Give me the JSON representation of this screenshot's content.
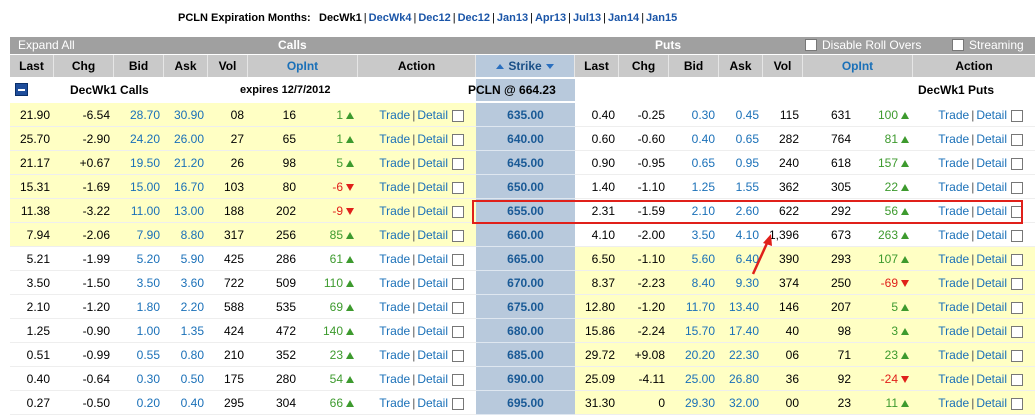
{
  "header": {
    "prefix": "PCLN Expiration Months:",
    "months": [
      "DecWk1",
      "DecWk4",
      "Dec12",
      "Dec12",
      "Jan13",
      "Apr13",
      "Jul13",
      "Jan14",
      "Jan15"
    ]
  },
  "toolbar": {
    "expand_all": "Expand All",
    "calls": "Calls",
    "puts": "Puts",
    "disable_roll_overs": "Disable Roll Overs",
    "streaming": "Streaming"
  },
  "columns": {
    "calls": [
      "Last",
      "Chg",
      "Bid",
      "Ask",
      "Vol",
      "OpInt",
      "Action"
    ],
    "strike": "Strike",
    "puts": [
      "Last",
      "Chg",
      "Bid",
      "Ask",
      "Vol",
      "OpInt",
      "Action"
    ]
  },
  "section": {
    "calls_label": "DecWk1 Calls",
    "expires": "expires 12/7/2012",
    "underlying": "PCLN @ 664.23",
    "puts_label": "DecWk1 Puts"
  },
  "action": {
    "trade": "Trade",
    "detail": "Detail",
    "sep": "|"
  },
  "rows": [
    {
      "c_last": "21.90",
      "c_chg": "-6.54",
      "c_bid": "28.70",
      "c_ask": "30.90",
      "c_vol": "08",
      "c_oi": "16",
      "c_d": "1",
      "c_dir": "up",
      "strike": "635.00",
      "p_last": "0.40",
      "p_chg": "-0.25",
      "p_bid": "0.30",
      "p_ask": "0.45",
      "p_vol": "115",
      "p_oi": "631",
      "p_d": "100",
      "p_dir": "up"
    },
    {
      "c_last": "25.70",
      "c_chg": "-2.90",
      "c_bid": "24.20",
      "c_ask": "26.00",
      "c_vol": "27",
      "c_oi": "65",
      "c_d": "1",
      "c_dir": "up",
      "strike": "640.00",
      "p_last": "0.60",
      "p_chg": "-0.60",
      "p_bid": "0.40",
      "p_ask": "0.65",
      "p_vol": "282",
      "p_oi": "764",
      "p_d": "81",
      "p_dir": "up"
    },
    {
      "c_last": "21.17",
      "c_chg": "+0.67",
      "c_bid": "19.50",
      "c_ask": "21.20",
      "c_vol": "26",
      "c_oi": "98",
      "c_d": "5",
      "c_dir": "up",
      "strike": "645.00",
      "p_last": "0.90",
      "p_chg": "-0.95",
      "p_bid": "0.65",
      "p_ask": "0.95",
      "p_vol": "240",
      "p_oi": "618",
      "p_d": "157",
      "p_dir": "up"
    },
    {
      "c_last": "15.31",
      "c_chg": "-1.69",
      "c_bid": "15.00",
      "c_ask": "16.70",
      "c_vol": "103",
      "c_oi": "80",
      "c_d": "-6",
      "c_dir": "down",
      "strike": "650.00",
      "p_last": "1.40",
      "p_chg": "-1.10",
      "p_bid": "1.25",
      "p_ask": "1.55",
      "p_vol": "362",
      "p_oi": "305",
      "p_d": "22",
      "p_dir": "up"
    },
    {
      "c_last": "11.38",
      "c_chg": "-3.22",
      "c_bid": "11.00",
      "c_ask": "13.00",
      "c_vol": "188",
      "c_oi": "202",
      "c_d": "-9",
      "c_dir": "down",
      "strike": "655.00",
      "p_last": "2.31",
      "p_chg": "-1.59",
      "p_bid": "2.10",
      "p_ask": "2.60",
      "p_vol": "622",
      "p_oi": "292",
      "p_d": "56",
      "p_dir": "up"
    },
    {
      "c_last": "7.94",
      "c_chg": "-2.06",
      "c_bid": "7.90",
      "c_ask": "8.80",
      "c_vol": "317",
      "c_oi": "256",
      "c_d": "85",
      "c_dir": "up",
      "strike": "660.00",
      "p_last": "4.10",
      "p_chg": "-2.00",
      "p_bid": "3.50",
      "p_ask": "4.10",
      "p_vol": "1,396",
      "p_oi": "673",
      "p_d": "263",
      "p_dir": "up"
    },
    {
      "c_last": "5.21",
      "c_chg": "-1.99",
      "c_bid": "5.20",
      "c_ask": "5.90",
      "c_vol": "425",
      "c_oi": "286",
      "c_d": "61",
      "c_dir": "up",
      "strike": "665.00",
      "p_last": "6.50",
      "p_chg": "-1.10",
      "p_bid": "5.60",
      "p_ask": "6.40",
      "p_vol": "390",
      "p_oi": "293",
      "p_d": "107",
      "p_dir": "up"
    },
    {
      "c_last": "3.50",
      "c_chg": "-1.50",
      "c_bid": "3.50",
      "c_ask": "3.60",
      "c_vol": "722",
      "c_oi": "509",
      "c_d": "110",
      "c_dir": "up",
      "strike": "670.00",
      "p_last": "8.37",
      "p_chg": "-2.23",
      "p_bid": "8.40",
      "p_ask": "9.30",
      "p_vol": "374",
      "p_oi": "250",
      "p_d": "-69",
      "p_dir": "down"
    },
    {
      "c_last": "2.10",
      "c_chg": "-1.20",
      "c_bid": "1.80",
      "c_ask": "2.20",
      "c_vol": "588",
      "c_oi": "535",
      "c_d": "69",
      "c_dir": "up",
      "strike": "675.00",
      "p_last": "12.80",
      "p_chg": "-1.20",
      "p_bid": "11.70",
      "p_ask": "13.40",
      "p_vol": "146",
      "p_oi": "207",
      "p_d": "5",
      "p_dir": "up"
    },
    {
      "c_last": "1.25",
      "c_chg": "-0.90",
      "c_bid": "1.00",
      "c_ask": "1.35",
      "c_vol": "424",
      "c_oi": "472",
      "c_d": "140",
      "c_dir": "up",
      "strike": "680.00",
      "p_last": "15.86",
      "p_chg": "-2.24",
      "p_bid": "15.70",
      "p_ask": "17.40",
      "p_vol": "40",
      "p_oi": "98",
      "p_d": "3",
      "p_dir": "up"
    },
    {
      "c_last": "0.51",
      "c_chg": "-0.99",
      "c_bid": "0.55",
      "c_ask": "0.80",
      "c_vol": "210",
      "c_oi": "352",
      "c_d": "23",
      "c_dir": "up",
      "strike": "685.00",
      "p_last": "29.72",
      "p_chg": "+9.08",
      "p_bid": "20.20",
      "p_ask": "22.30",
      "p_vol": "06",
      "p_oi": "71",
      "p_d": "23",
      "p_dir": "up"
    },
    {
      "c_last": "0.40",
      "c_chg": "-0.64",
      "c_bid": "0.30",
      "c_ask": "0.50",
      "c_vol": "175",
      "c_oi": "280",
      "c_d": "54",
      "c_dir": "up",
      "strike": "690.00",
      "p_last": "25.09",
      "p_chg": "-4.11",
      "p_bid": "25.00",
      "p_ask": "26.80",
      "p_vol": "36",
      "p_oi": "92",
      "p_d": "-24",
      "p_dir": "down"
    },
    {
      "c_last": "0.27",
      "c_chg": "-0.50",
      "c_bid": "0.20",
      "c_ask": "0.40",
      "c_vol": "295",
      "c_oi": "304",
      "c_d": "66",
      "c_dir": "up",
      "strike": "695.00",
      "p_last": "31.30",
      "p_chg": "0",
      "p_bid": "29.30",
      "p_ask": "32.00",
      "p_vol": "00",
      "p_oi": "23",
      "p_d": "11",
      "p_dir": "up"
    }
  ],
  "colors": {
    "itm_yellow": "#ffffc4",
    "otm_white": "#ffffff",
    "strike_blue": "#b8c9dc",
    "header_gray": "#c9c9c9",
    "bar_gray": "#a0a0a0",
    "highlight_red": "#e0201a",
    "link_blue": "#1a70b8"
  }
}
